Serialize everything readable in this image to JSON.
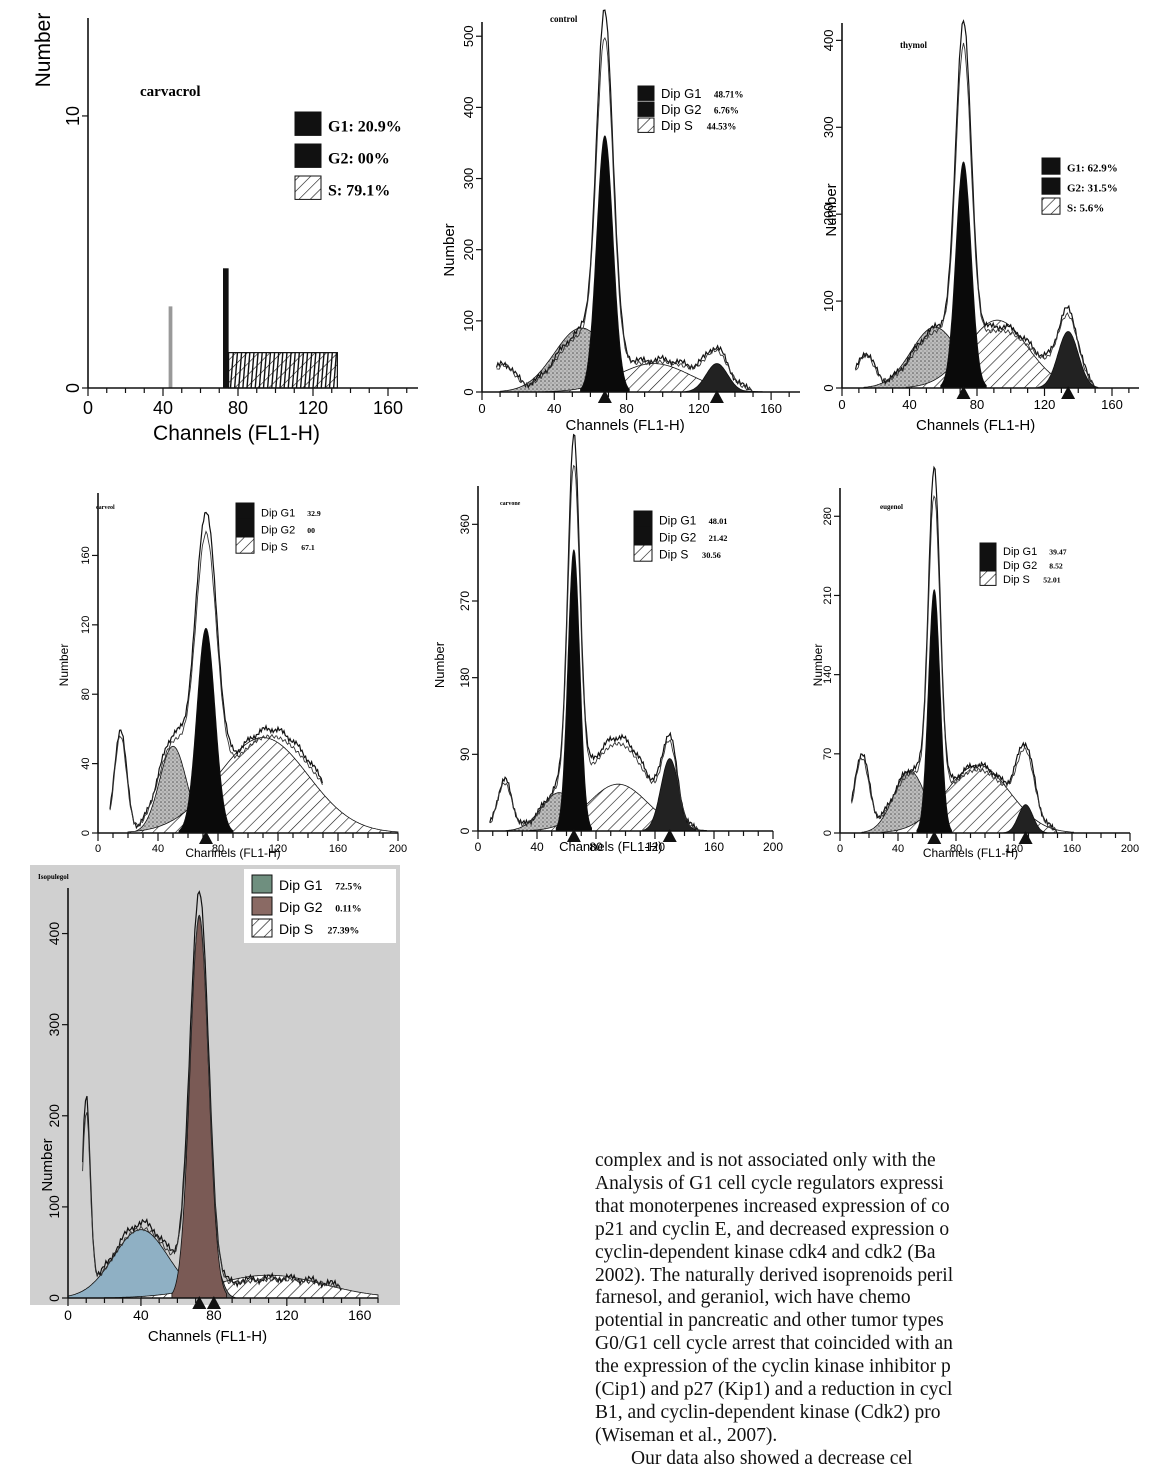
{
  "panels": [
    {
      "id": "carvacrol",
      "title": "carvacrol",
      "xlabel": "Channels  (FL1-H)",
      "ylabel": "Number",
      "xticks": [
        "0",
        "40",
        "80",
        "120",
        "160"
      ],
      "yticks": [
        "0",
        "10"
      ],
      "legend": [
        {
          "type": "G1",
          "label": "G1: 20.9%",
          "value": ""
        },
        {
          "type": "G2",
          "label": "G2: 00%",
          "value": ""
        },
        {
          "type": "S",
          "label": "S: 79.1%",
          "value": ""
        }
      ]
    },
    {
      "id": "control",
      "title": "control",
      "xlabel": "Channels  (FL1-H)",
      "ylabel": "Number",
      "xticks": [
        "0",
        "40",
        "80",
        "120",
        "160"
      ],
      "yticks": [
        "0",
        "100",
        "200",
        "300",
        "400",
        "500"
      ],
      "legend": [
        {
          "type": "G1",
          "label": "Dip G1",
          "value": "48.71%"
        },
        {
          "type": "G2",
          "label": "Dip G2",
          "value": "6.76%"
        },
        {
          "type": "S",
          "label": "Dip S",
          "value": "44.53%"
        }
      ]
    },
    {
      "id": "thymol",
      "title": "thymol",
      "xlabel": "Channels  (FL1-H)",
      "ylabel": "Number",
      "xticks": [
        "0",
        "40",
        "80",
        "120",
        "160"
      ],
      "yticks": [
        "0",
        "100",
        "200",
        "300",
        "400"
      ],
      "legend": [
        {
          "type": "G1",
          "label": "G1: 62.9%",
          "value": ""
        },
        {
          "type": "G2",
          "label": "G2: 31.5%",
          "value": ""
        },
        {
          "type": "S",
          "label": "S: 5.6%",
          "value": ""
        }
      ]
    },
    {
      "id": "carveol",
      "title": "carveol",
      "xlabel": "Channels  (FL1-H)",
      "ylabel": "Number",
      "xticks": [
        "0",
        "40",
        "80",
        "120",
        "160",
        "200"
      ],
      "yticks": [
        "0",
        "40",
        "80",
        "120",
        "160"
      ],
      "legend": [
        {
          "type": "G1",
          "label": "Dip G1",
          "value": "32.9"
        },
        {
          "type": "G2",
          "label": "Dip G2",
          "value": "00"
        },
        {
          "type": "S",
          "label": "Dip S",
          "value": "67.1"
        }
      ]
    },
    {
      "id": "carvone",
      "title": "carvone",
      "xlabel": "Channels  (FL1-H)",
      "ylabel": "Number",
      "xticks": [
        "0",
        "40",
        "80",
        "120",
        "160",
        "200"
      ],
      "yticks": [
        "0",
        "90",
        "180",
        "270",
        "360"
      ],
      "legend": [
        {
          "type": "G1",
          "label": "Dip G1",
          "value": "48.01"
        },
        {
          "type": "G2",
          "label": "Dip G2",
          "value": "21.42"
        },
        {
          "type": "S",
          "label": "Dip S",
          "value": "30.56"
        }
      ]
    },
    {
      "id": "eugenol",
      "title": "eugenol",
      "xlabel": "Channels  (FL1-H)",
      "ylabel": "Number",
      "xticks": [
        "0",
        "40",
        "80",
        "120",
        "160",
        "200"
      ],
      "yticks": [
        "0",
        "70",
        "140",
        "210",
        "280"
      ],
      "legend": [
        {
          "type": "G1",
          "label": "Dip G1",
          "value": "39.47"
        },
        {
          "type": "G2",
          "label": "Dip G2",
          "value": "8.52"
        },
        {
          "type": "S",
          "label": "Dip S",
          "value": "52.01"
        }
      ]
    },
    {
      "id": "isopulegol",
      "title": "Isopulegol",
      "xlabel": "Channels  (FL1-H)",
      "ylabel": "Number",
      "xticks": [
        "0",
        "40",
        "80",
        "120",
        "160"
      ],
      "yticks": [
        "0",
        "100",
        "200",
        "300",
        "400"
      ],
      "legend": [
        {
          "type": "G1",
          "label": "Dip G1",
          "value": "72.5%"
        },
        {
          "type": "G2",
          "label": "Dip G2",
          "value": "0.11%"
        },
        {
          "type": "S",
          "label": "Dip S",
          "value": "27.39%"
        }
      ]
    }
  ],
  "body_text": [
    "complex and is not associated only with the",
    "Analysis of G1 cell cycle regulators expressi",
    "that monoterpenes increased expression of co",
    "p21 and cyclin E, and decreased expression o",
    "cyclin-dependent kinase cdk4 and cdk2 (Ba",
    "2002). The naturally derived isoprenoids peril",
    "farnesol, and geraniol, wich have chemo",
    "potential in pancreatic and other tumor types",
    "G0/G1 cell cycle arrest that coincided with an",
    "the expression of the cyclin kinase inhibitor p",
    "(Cip1) and p27 (Kip1) and a reduction in cycl",
    "B1, and cyclin-dependent kinase (Cdk2) pro",
    "(Wiseman et al., 2007).",
    "Our data also showed a decrease cel"
  ]
}
